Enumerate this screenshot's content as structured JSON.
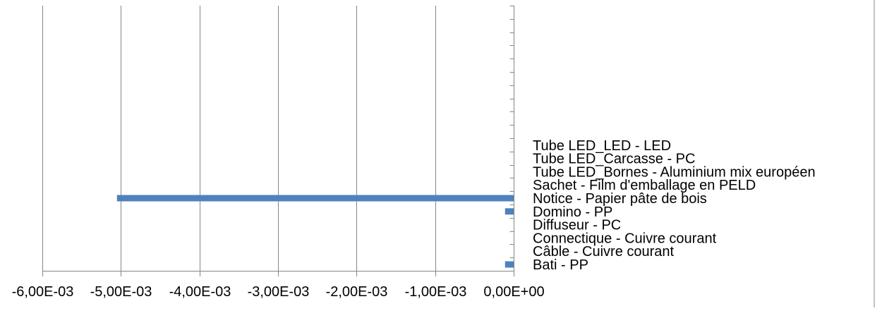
{
  "chart_data": {
    "type": "bar",
    "orientation": "horizontal",
    "title": "",
    "xlabel": "",
    "ylabel": "",
    "xlim": [
      -0.006,
      0
    ],
    "x_tick_values": [
      -0.006,
      -0.005,
      -0.004,
      -0.003,
      -0.002,
      -0.001,
      0
    ],
    "x_tick_labels": [
      "-6,00E-03",
      "-5,00E-03",
      "-4,00E-03",
      "-3,00E-03",
      "-2,00E-03",
      "-1,00E-03",
      "0,00E+00"
    ],
    "grid": "vertical major gridlines",
    "legend": "none",
    "bar_color": "#4F81BD",
    "categories": [
      "Bati - PP",
      "Câble - Cuivre courant",
      "Connectique - Cuivre courant",
      "Diffuseur - PC",
      "Domino - PP",
      "Notice - Papier pâte de bois",
      "Sachet - Film d'emballage en PELD",
      "Tube LED_Bornes - Aluminium mix européen",
      "Tube LED_Carcasse - PC",
      "Tube LED_LED - LED"
    ],
    "values": [
      -0.00011,
      0,
      0,
      0,
      -0.00011,
      -0.00505,
      0,
      0,
      0,
      0
    ]
  }
}
